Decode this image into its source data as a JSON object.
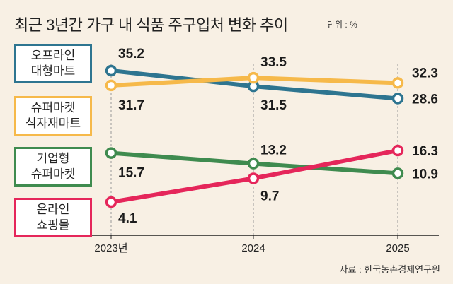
{
  "chart_data": {
    "type": "line",
    "title": "최근 3년간 가구 내 식품 주구입처 변화 추이",
    "unit_label": "단위 : %",
    "x": [
      "2023년",
      "2024",
      "2025"
    ],
    "series": [
      {
        "name_lines": [
          "오프라인",
          "대형마트"
        ],
        "color": "#2e7590",
        "values": [
          35.2,
          31.5,
          28.6
        ]
      },
      {
        "name_lines": [
          "슈퍼마켓",
          "식자재마트"
        ],
        "color": "#f6b94a",
        "values": [
          31.7,
          33.5,
          32.3
        ]
      },
      {
        "name_lines": [
          "기업형",
          "슈퍼마켓"
        ],
        "color": "#3f8b4f",
        "values": [
          15.7,
          13.2,
          10.9
        ]
      },
      {
        "name_lines": [
          "온라인",
          "쇼핑몰"
        ],
        "color": "#e5265a",
        "values": [
          4.1,
          9.7,
          16.3
        ]
      }
    ],
    "highlight_color": "#e5265a",
    "source": "자료 : 한국농촌경제연구원"
  }
}
